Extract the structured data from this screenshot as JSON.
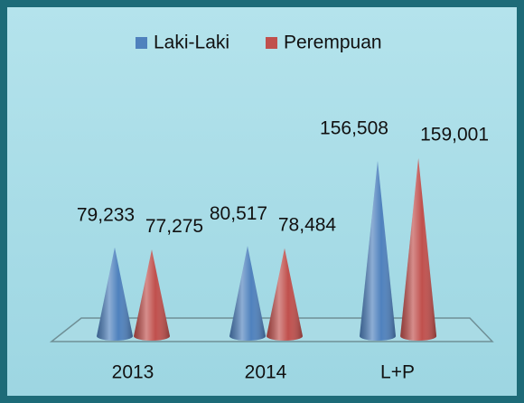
{
  "chart_data": {
    "type": "cone",
    "categories": [
      "2013",
      "2014",
      "L+P"
    ],
    "series": [
      {
        "name": "Laki-Laki",
        "color": "#4f81bd",
        "values": [
          79233,
          80517,
          156508
        ],
        "value_labels": [
          "79,233",
          "80,517",
          "156,508"
        ]
      },
      {
        "name": "Perempuan",
        "color": "#c0504d",
        "values": [
          77275,
          78484,
          159001
        ],
        "value_labels": [
          "77,275",
          "78,484",
          "159,001"
        ]
      }
    ]
  }
}
